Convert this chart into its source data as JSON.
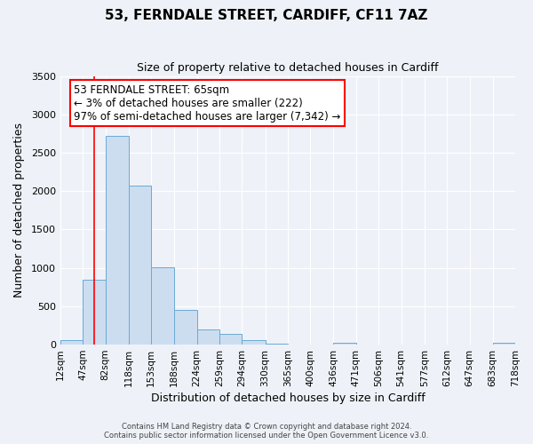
{
  "title": "53, FERNDALE STREET, CARDIFF, CF11 7AZ",
  "subtitle": "Size of property relative to detached houses in Cardiff",
  "xlabel": "Distribution of detached houses by size in Cardiff",
  "ylabel": "Number of detached properties",
  "bar_color": "#ccddf0",
  "bar_edge_color": "#6aaad4",
  "background_color": "#eef2f8",
  "bin_edges": [
    12,
    47,
    82,
    118,
    153,
    188,
    224,
    259,
    294,
    330,
    365,
    400,
    436,
    471,
    506,
    541,
    577,
    612,
    647,
    683,
    718
  ],
  "bin_labels": [
    "12sqm",
    "47sqm",
    "82sqm",
    "118sqm",
    "153sqm",
    "188sqm",
    "224sqm",
    "259sqm",
    "294sqm",
    "330sqm",
    "365sqm",
    "400sqm",
    "436sqm",
    "471sqm",
    "506sqm",
    "541sqm",
    "577sqm",
    "612sqm",
    "647sqm",
    "683sqm",
    "718sqm"
  ],
  "bar_heights": [
    55,
    850,
    2720,
    2075,
    1010,
    450,
    200,
    140,
    55,
    10,
    5,
    3,
    25,
    3,
    2,
    2,
    1,
    1,
    1,
    20
  ],
  "ylim": [
    0,
    3500
  ],
  "yticks": [
    0,
    500,
    1000,
    1500,
    2000,
    2500,
    3000,
    3500
  ],
  "red_line_x": 65,
  "annotation_title": "53 FERNDALE STREET: 65sqm",
  "annotation_line1": "← 3% of detached houses are smaller (222)",
  "annotation_line2": "97% of semi-detached houses are larger (7,342) →",
  "footer_line1": "Contains HM Land Registry data © Crown copyright and database right 2024.",
  "footer_line2": "Contains public sector information licensed under the Open Government Licence v3.0."
}
